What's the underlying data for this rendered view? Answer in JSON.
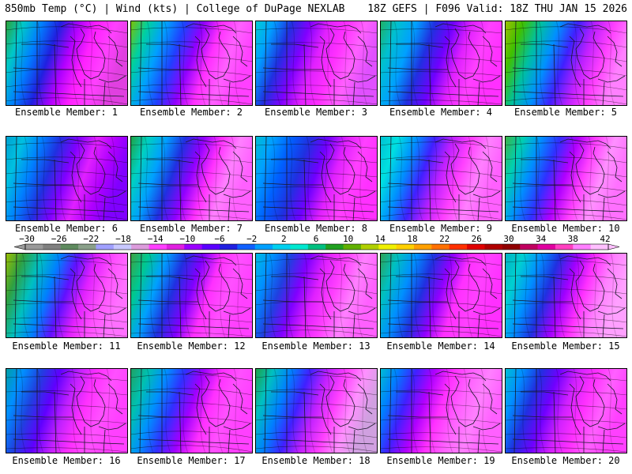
{
  "header": {
    "left_title": "850mb Temp (°C) | Wind (kts) | College of DuPage NEXLAB",
    "right_title": "18Z GEFS | F096 Valid: 18Z THU JAN 15 2026"
  },
  "colorbar": {
    "tick_labels": [
      "−30",
      "−26",
      "−22",
      "−18",
      "−14",
      "−10",
      "−6",
      "−2",
      "2",
      "6",
      "10",
      "14",
      "18",
      "22",
      "26",
      "30",
      "34",
      "38",
      "42"
    ],
    "colors": [
      "#9a9a9a",
      "#808080",
      "#5e8a5e",
      "#8aa08a",
      "#a0a0ff",
      "#c8c8ff",
      "#dc9cdc",
      "#ff40ff",
      "#e020e0",
      "#9b00ff",
      "#5a00ff",
      "#2020e0",
      "#1060ff",
      "#00a0ff",
      "#00d0f0",
      "#00e8d0",
      "#00c080",
      "#20a020",
      "#60b000",
      "#b0d000",
      "#f0f000",
      "#ffd000",
      "#ffa000",
      "#ff7000",
      "#ff3000",
      "#e00000",
      "#b00000",
      "#900000",
      "#c00060",
      "#e000a0",
      "#ff40c0",
      "#ff80ff",
      "#ffc0ff"
    ]
  },
  "caption_prefix": "Ensemble Member: ",
  "members": [
    {
      "number": "1",
      "label": "Ensemble Member: 1"
    },
    {
      "number": "2",
      "label": "Ensemble Member: 2"
    },
    {
      "number": "3",
      "label": "Ensemble Member: 3"
    },
    {
      "number": "4",
      "label": "Ensemble Member: 4"
    },
    {
      "number": "5",
      "label": "Ensemble Member: 5"
    },
    {
      "number": "6",
      "label": "Ensemble Member: 6"
    },
    {
      "number": "7",
      "label": "Ensemble Member: 7"
    },
    {
      "number": "8",
      "label": "Ensemble Member: 8"
    },
    {
      "number": "9",
      "label": "Ensemble Member: 9"
    },
    {
      "number": "10",
      "label": "Ensemble Member: 10"
    },
    {
      "number": "11",
      "label": "Ensemble Member: 11"
    },
    {
      "number": "12",
      "label": "Ensemble Member: 12"
    },
    {
      "number": "13",
      "label": "Ensemble Member: 13"
    },
    {
      "number": "14",
      "label": "Ensemble Member: 14"
    },
    {
      "number": "15",
      "label": "Ensemble Member: 15"
    },
    {
      "number": "16",
      "label": "Ensemble Member: 16"
    },
    {
      "number": "17",
      "label": "Ensemble Member: 17"
    },
    {
      "number": "18",
      "label": "Ensemble Member: 18"
    },
    {
      "number": "19",
      "label": "Ensemble Member: 19"
    },
    {
      "number": "20",
      "label": "Ensemble Member: 20"
    }
  ]
}
